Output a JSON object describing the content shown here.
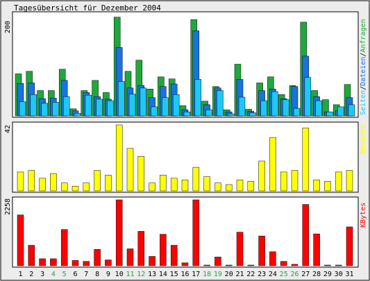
{
  "title": "Tagesübersicht für Dezember 2004",
  "colors": {
    "background": "#ececec",
    "border": "#000000",
    "hits": "#1fa83b",
    "files": "#1873e0",
    "pages": "#1ec8f5",
    "visits": "#ffff00",
    "kbytes": "#ff0000",
    "weekday_label": "#000000",
    "weekend_label": "#1fa83b"
  },
  "chart_data": [
    {
      "type": "bar",
      "panel": "top",
      "y_max_label": "200",
      "ylim": [
        0,
        200
      ],
      "side_legend": [
        {
          "text": "Seiten",
          "color": "#1ec8f5"
        },
        {
          "text": "/",
          "color": "#000000"
        },
        {
          "text": "Dateien",
          "color": "#1873e0"
        },
        {
          "text": "/",
          "color": "#000000"
        },
        {
          "text": "Anfragen",
          "color": "#1fa83b"
        }
      ],
      "categories": [
        "1",
        "2",
        "3",
        "4",
        "5",
        "6",
        "7",
        "8",
        "9",
        "10",
        "11",
        "12",
        "13",
        "14",
        "15",
        "16",
        "17",
        "18",
        "19",
        "20",
        "21",
        "22",
        "23",
        "24",
        "25",
        "26",
        "27",
        "28",
        "29",
        "30",
        "31"
      ],
      "series": [
        {
          "name": "Anfragen",
          "color": "#1fa83b",
          "values": [
            83,
            88,
            50,
            50,
            92,
            14,
            50,
            70,
            46,
            195,
            88,
            110,
            53,
            77,
            73,
            20,
            190,
            29,
            58,
            12,
            102,
            13,
            65,
            77,
            42,
            60,
            185,
            50,
            32,
            22,
            62
          ]
        },
        {
          "name": "Dateien",
          "color": "#1873e0",
          "values": [
            64,
            65,
            34,
            35,
            70,
            10,
            46,
            38,
            33,
            135,
            55,
            60,
            36,
            58,
            63,
            12,
            168,
            22,
            55,
            8,
            72,
            9,
            50,
            53,
            34,
            58,
            118,
            38,
            8,
            10,
            36
          ]
        },
        {
          "name": "Seiten",
          "color": "#1ec8f5",
          "values": [
            28,
            42,
            25,
            27,
            38,
            5,
            41,
            33,
            30,
            68,
            43,
            55,
            18,
            36,
            42,
            8,
            72,
            12,
            50,
            4,
            37,
            6,
            30,
            48,
            32,
            15,
            76,
            30,
            8,
            18,
            22
          ]
        }
      ]
    },
    {
      "type": "bar",
      "panel": "middle",
      "y_max_label": "42",
      "ylim": [
        0,
        42
      ],
      "side_legend": [
        {
          "text": "Besuche",
          "color": "#ffff00"
        }
      ],
      "categories": [
        "1",
        "2",
        "3",
        "4",
        "5",
        "6",
        "7",
        "8",
        "9",
        "10",
        "11",
        "12",
        "13",
        "14",
        "15",
        "16",
        "17",
        "18",
        "19",
        "20",
        "21",
        "22",
        "23",
        "24",
        "25",
        "26",
        "27",
        "28",
        "29",
        "30",
        "31"
      ],
      "series": [
        {
          "name": "Besuche",
          "color": "#ffff00",
          "values": [
            12,
            13,
            8,
            11,
            5,
            3,
            5,
            13,
            10,
            42,
            27,
            22,
            5,
            10,
            8,
            7,
            15,
            9,
            5,
            4,
            7,
            6,
            19,
            34,
            12,
            13,
            40,
            7,
            6,
            12,
            13
          ]
        }
      ]
    },
    {
      "type": "bar",
      "panel": "bottom",
      "y_max_label": "2258",
      "ylim": [
        0,
        2258
      ],
      "side_legend": [
        {
          "text": "KBytes",
          "color": "#ff0000"
        }
      ],
      "categories": [
        "1",
        "2",
        "3",
        "4",
        "5",
        "6",
        "7",
        "8",
        "9",
        "10",
        "11",
        "12",
        "13",
        "14",
        "15",
        "16",
        "17",
        "18",
        "19",
        "20",
        "21",
        "22",
        "23",
        "24",
        "25",
        "26",
        "27",
        "28",
        "29",
        "30",
        "31"
      ],
      "series": [
        {
          "name": "KBytes",
          "color": "#ff0000",
          "values": [
            1740,
            700,
            240,
            240,
            1240,
            180,
            150,
            560,
            200,
            2258,
            580,
            1180,
            320,
            1080,
            700,
            100,
            2258,
            20,
            300,
            20,
            1150,
            20,
            1020,
            480,
            150,
            50,
            2100,
            1090,
            20,
            20,
            1330
          ]
        }
      ]
    }
  ],
  "day_labels": [
    {
      "text": "1",
      "weekend": false
    },
    {
      "text": "2",
      "weekend": false
    },
    {
      "text": "3",
      "weekend": false
    },
    {
      "text": "4",
      "weekend": true
    },
    {
      "text": "5",
      "weekend": true
    },
    {
      "text": "6",
      "weekend": false
    },
    {
      "text": "7",
      "weekend": false
    },
    {
      "text": "8",
      "weekend": false
    },
    {
      "text": "9",
      "weekend": false
    },
    {
      "text": "10",
      "weekend": false
    },
    {
      "text": "11",
      "weekend": true
    },
    {
      "text": "12",
      "weekend": true
    },
    {
      "text": "13",
      "weekend": false
    },
    {
      "text": "14",
      "weekend": false
    },
    {
      "text": "15",
      "weekend": false
    },
    {
      "text": "16",
      "weekend": false
    },
    {
      "text": "17",
      "weekend": false
    },
    {
      "text": "18",
      "weekend": true
    },
    {
      "text": "19",
      "weekend": true
    },
    {
      "text": "20",
      "weekend": false
    },
    {
      "text": "21",
      "weekend": false
    },
    {
      "text": "22",
      "weekend": false
    },
    {
      "text": "23",
      "weekend": false
    },
    {
      "text": "24",
      "weekend": false
    },
    {
      "text": "25",
      "weekend": true
    },
    {
      "text": "26",
      "weekend": true
    },
    {
      "text": "27",
      "weekend": false
    },
    {
      "text": "28",
      "weekend": false
    },
    {
      "text": "29",
      "weekend": false
    },
    {
      "text": "30",
      "weekend": false
    },
    {
      "text": "31",
      "weekend": false
    }
  ]
}
